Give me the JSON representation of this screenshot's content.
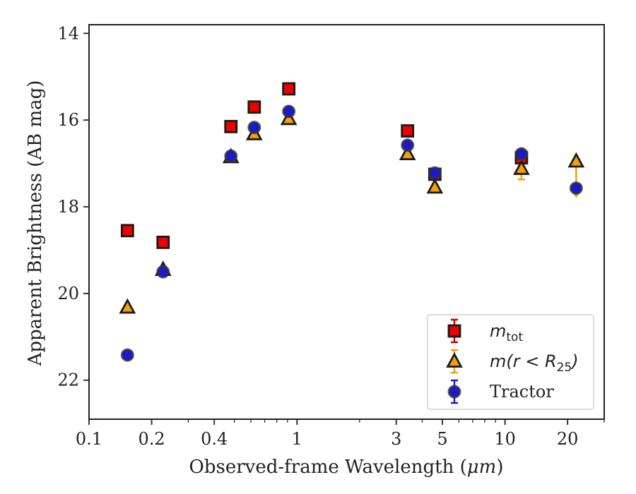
{
  "chart_data": {
    "type": "scatter",
    "xscale": "log",
    "yaxis_inverted": true,
    "xlabel_text": "Observed-frame Wavelength (",
    "xlabel_unit": "μm",
    "xlabel_close": ")",
    "ylabel": "Apparent Brightness (AB mag)",
    "xlim": [
      0.1,
      30
    ],
    "ylim": [
      22.9,
      13.8
    ],
    "x_ticks": [
      {
        "value": 0.1,
        "label": "0.1"
      },
      {
        "value": 0.2,
        "label": "0.2"
      },
      {
        "value": 0.4,
        "label": "0.4"
      },
      {
        "value": 1,
        "label": "1"
      },
      {
        "value": 3,
        "label": "3"
      },
      {
        "value": 5,
        "label": "5"
      },
      {
        "value": 10,
        "label": "10"
      },
      {
        "value": 20,
        "label": "20"
      }
    ],
    "x_minor_ticks": [
      0.3,
      0.5,
      0.6,
      0.7,
      0.8,
      0.9,
      2,
      4,
      6,
      7,
      8,
      9,
      30
    ],
    "y_ticks": [
      {
        "value": 14,
        "label": "14"
      },
      {
        "value": 16,
        "label": "16"
      },
      {
        "value": 18,
        "label": "18"
      },
      {
        "value": 20,
        "label": "20"
      },
      {
        "value": 22,
        "label": "22"
      }
    ],
    "legend_position": "lower right",
    "series": [
      {
        "key": "mtot",
        "marker": "square",
        "color": "#ee0000",
        "errcolor": "#cc0000",
        "points": [
          {
            "x": 0.153,
            "y": 18.55
          },
          {
            "x": 0.227,
            "y": 18.82
          },
          {
            "x": 0.481,
            "y": 16.15
          },
          {
            "x": 0.623,
            "y": 15.7
          },
          {
            "x": 0.913,
            "y": 15.28
          },
          {
            "x": 3.4,
            "y": 16.25
          },
          {
            "x": 4.6,
            "y": 17.25
          },
          {
            "x": 12.0,
            "y": 16.87
          }
        ]
      },
      {
        "key": "mr25",
        "marker": "triangle",
        "color": "#f5a000",
        "errcolor": "#f5a000",
        "points": [
          {
            "x": 0.153,
            "y": 20.32
          },
          {
            "x": 0.227,
            "y": 19.45
          },
          {
            "x": 0.481,
            "y": 16.85
          },
          {
            "x": 0.623,
            "y": 16.32
          },
          {
            "x": 0.913,
            "y": 15.97
          },
          {
            "x": 3.4,
            "y": 16.78
          },
          {
            "x": 4.6,
            "y": 17.55
          },
          {
            "x": 12.0,
            "y": 17.12,
            "err": 0.25
          },
          {
            "x": 22.0,
            "y": 16.95,
            "upper_limit_to": 17.75
          }
        ]
      },
      {
        "key": "tractor",
        "name": "Tractor",
        "marker": "circle",
        "color": "#1a1acc",
        "errcolor": "#1a1acc",
        "points": [
          {
            "x": 0.153,
            "y": 21.42
          },
          {
            "x": 0.227,
            "y": 19.5
          },
          {
            "x": 0.481,
            "y": 16.83
          },
          {
            "x": 0.623,
            "y": 16.17
          },
          {
            "x": 0.913,
            "y": 15.8
          },
          {
            "x": 3.4,
            "y": 16.58
          },
          {
            "x": 4.6,
            "y": 17.22
          },
          {
            "x": 12.0,
            "y": 16.78
          },
          {
            "x": 22.0,
            "y": 17.57
          }
        ]
      }
    ],
    "legend": [
      {
        "key": "mtot",
        "math_main": "m",
        "math_sub": "tot",
        "math_tail": ""
      },
      {
        "key": "mr25",
        "math_main": "m(r < R",
        "math_sub": "25",
        "math_tail": ")"
      },
      {
        "key": "tractor",
        "text": "Tractor"
      }
    ]
  }
}
